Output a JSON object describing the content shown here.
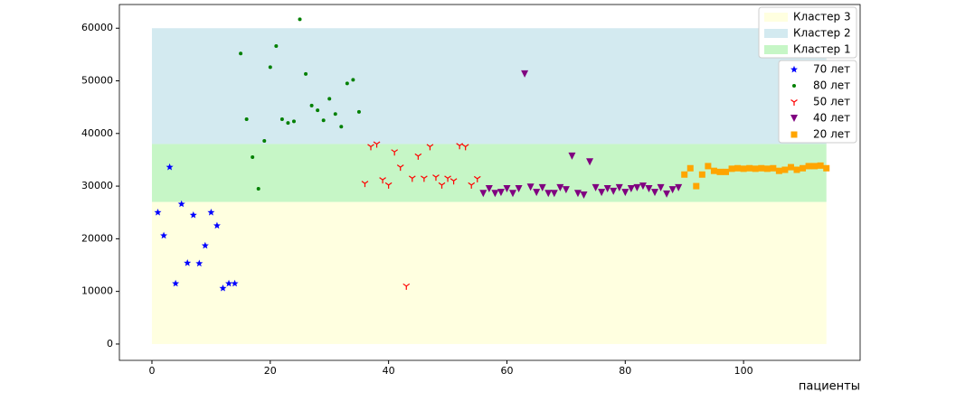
{
  "chart_data": {
    "type": "scatter",
    "xlabel": "пациенты",
    "xlim": [
      -5.5,
      119.7
    ],
    "ylim": [
      -3100,
      64500
    ],
    "xticks": [
      0,
      20,
      40,
      60,
      80,
      100
    ],
    "yticks": [
      0,
      10000,
      20000,
      30000,
      40000,
      50000,
      60000
    ],
    "legend": "upper right",
    "bands": [
      {
        "name": "Кластер 3",
        "color": "#ffffe0",
        "x": [
          0,
          114
        ],
        "y": [
          0,
          27000
        ]
      },
      {
        "name": "Кластер 2",
        "color": "#d3eaf0",
        "x": [
          0,
          114
        ],
        "y": [
          38000,
          60000
        ]
      },
      {
        "name": "Кластер 1",
        "color": "#c6f6c6",
        "x": [
          0,
          114
        ],
        "y": [
          27000,
          38000
        ]
      }
    ],
    "series": [
      {
        "name": "70 лет",
        "color": "#0000ff",
        "marker": "star",
        "x": [
          1,
          2,
          3,
          4,
          5,
          6,
          7,
          8,
          9,
          10,
          11,
          12,
          13,
          14
        ],
        "values": [
          25000,
          20600,
          33600,
          11500,
          26600,
          15400,
          24500,
          15300,
          18700,
          25000,
          22500,
          10600,
          11500,
          11500
        ]
      },
      {
        "name": "80 лет",
        "color": "#008000",
        "marker": "dot",
        "x": [
          15,
          16,
          17,
          18,
          19,
          20,
          21,
          22,
          23,
          24,
          25,
          26,
          27,
          28,
          29,
          30,
          31,
          32,
          33,
          34,
          35
        ],
        "values": [
          55200,
          42700,
          35500,
          29500,
          38600,
          52600,
          56600,
          42700,
          42000,
          42300,
          61700,
          51300,
          45300,
          44400,
          42500,
          46600,
          43700,
          41300,
          49500,
          50200,
          44100
        ]
      },
      {
        "name": "50 лет",
        "color": "#ff0000",
        "marker": "tri",
        "x": [
          36,
          37,
          38,
          39,
          40,
          41,
          42,
          43,
          44,
          45,
          46,
          47,
          48,
          49,
          50,
          51,
          52,
          53,
          54,
          55
        ],
        "values": [
          30500,
          37500,
          38000,
          31200,
          30200,
          36500,
          33600,
          11000,
          31500,
          35700,
          31500,
          37500,
          31700,
          30200,
          31500,
          31000,
          37700,
          37500,
          30200,
          31400
        ]
      },
      {
        "name": "40 лет",
        "color": "#800080",
        "marker": "triangle",
        "x": [
          56,
          57,
          58,
          59,
          60,
          61,
          62,
          63,
          64,
          65,
          66,
          67,
          68,
          69,
          70,
          71,
          72,
          73,
          74,
          75,
          76,
          77,
          78,
          79,
          80,
          81,
          82,
          83,
          84,
          85,
          86,
          87,
          88,
          89
        ],
        "values": [
          28600,
          29500,
          28600,
          28800,
          29500,
          28600,
          29500,
          51300,
          29800,
          28800,
          29700,
          28600,
          28600,
          29700,
          29300,
          35700,
          28600,
          28300,
          34600,
          29700,
          28800,
          29500,
          29000,
          29700,
          28800,
          29500,
          29700,
          30000,
          29500,
          28800,
          29700,
          28500,
          29300,
          29700
        ]
      },
      {
        "name": "20 лет",
        "color": "#ffa500",
        "marker": "square",
        "x": [
          90,
          91,
          92,
          93,
          94,
          95,
          96,
          97,
          98,
          99,
          100,
          101,
          102,
          103,
          104,
          105,
          106,
          107,
          108,
          109,
          110,
          111,
          112,
          113,
          114
        ],
        "values": [
          32200,
          33400,
          30000,
          32200,
          33800,
          32900,
          32700,
          32700,
          33300,
          33400,
          33300,
          33400,
          33300,
          33400,
          33300,
          33400,
          32900,
          33100,
          33600,
          33100,
          33400,
          33800,
          33800,
          33900,
          33400
        ]
      }
    ]
  }
}
